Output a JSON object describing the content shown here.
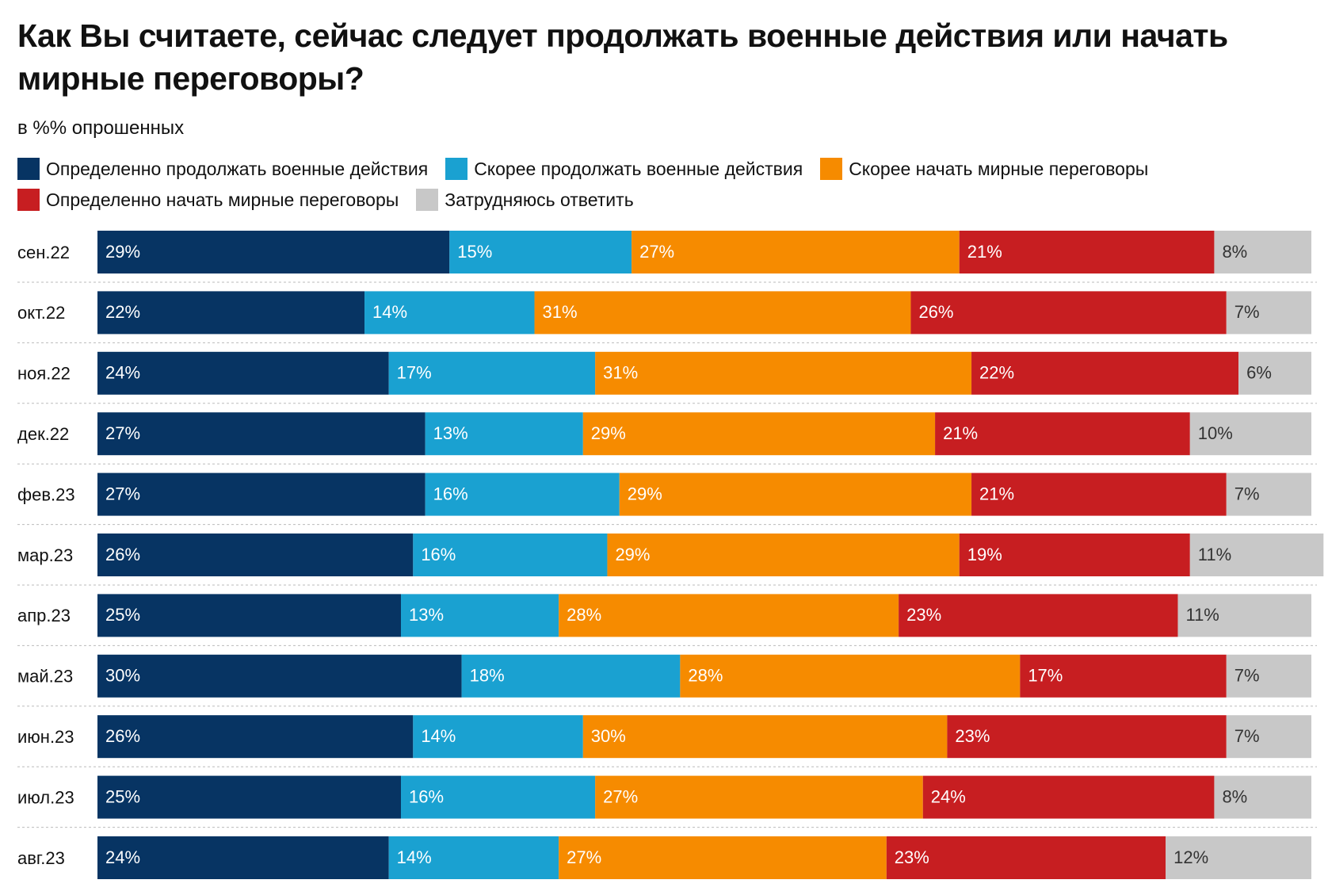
{
  "chart_data": {
    "type": "stacked-barh",
    "title": "Как Вы считаете, сейчас следует продолжать военные действия или начать мирные переговоры?",
    "subtitle": "в %% опрошенных",
    "categories": [
      "сен.22",
      "окт.22",
      "ноя.22",
      "дек.22",
      "фев.23",
      "мар.23",
      "апр.23",
      "май.23",
      "июн.23",
      "июл.23",
      "авг.23"
    ],
    "xlim": [
      0,
      100
    ],
    "series": [
      {
        "name": "Определенно продолжать военные действия",
        "color": "#073463",
        "values": [
          29,
          22,
          24,
          27,
          27,
          26,
          25,
          30,
          26,
          25,
          24
        ],
        "value_labels": [
          "29%",
          "22%",
          "24%",
          "27%",
          "27%",
          "26%",
          "25%",
          "30%",
          "26%",
          "25%",
          "24%"
        ]
      },
      {
        "name": "Скорее продолжать военные действия",
        "color": "#1aa1d1",
        "values": [
          15,
          14,
          17,
          13,
          16,
          16,
          13,
          18,
          14,
          16,
          14
        ],
        "value_labels": [
          "15%",
          "14%",
          "17%",
          "13%",
          "16%",
          "16%",
          "13%",
          "18%",
          "14%",
          "16%",
          "14%"
        ]
      },
      {
        "name": "Скорее начать мирные переговоры",
        "color": "#f68b00",
        "values": [
          27,
          31,
          31,
          29,
          29,
          29,
          28,
          28,
          30,
          27,
          27
        ],
        "value_labels": [
          "27%",
          "31%",
          "31%",
          "29%",
          "29%",
          "29%",
          "28%",
          "28%",
          "30%",
          "27%",
          "27%"
        ]
      },
      {
        "name": "Определенно начать мирные переговоры",
        "color": "#c71e21",
        "values": [
          21,
          26,
          22,
          21,
          21,
          19,
          23,
          17,
          23,
          24,
          23
        ],
        "value_labels": [
          "21%",
          "26%",
          "22%",
          "21%",
          "21%",
          "19%",
          "23%",
          "17%",
          "23%",
          "24%",
          "23%"
        ]
      },
      {
        "name": "Затрудняюсь ответить",
        "color": "#c8c8c8",
        "values": [
          8,
          7,
          6,
          10,
          7,
          11,
          11,
          7,
          7,
          8,
          12
        ],
        "value_labels": [
          "8%",
          "7%",
          "6%",
          "10%",
          "7%",
          "11%",
          "11%",
          "7%",
          "7%",
          "8%",
          "12%"
        ]
      }
    ]
  }
}
